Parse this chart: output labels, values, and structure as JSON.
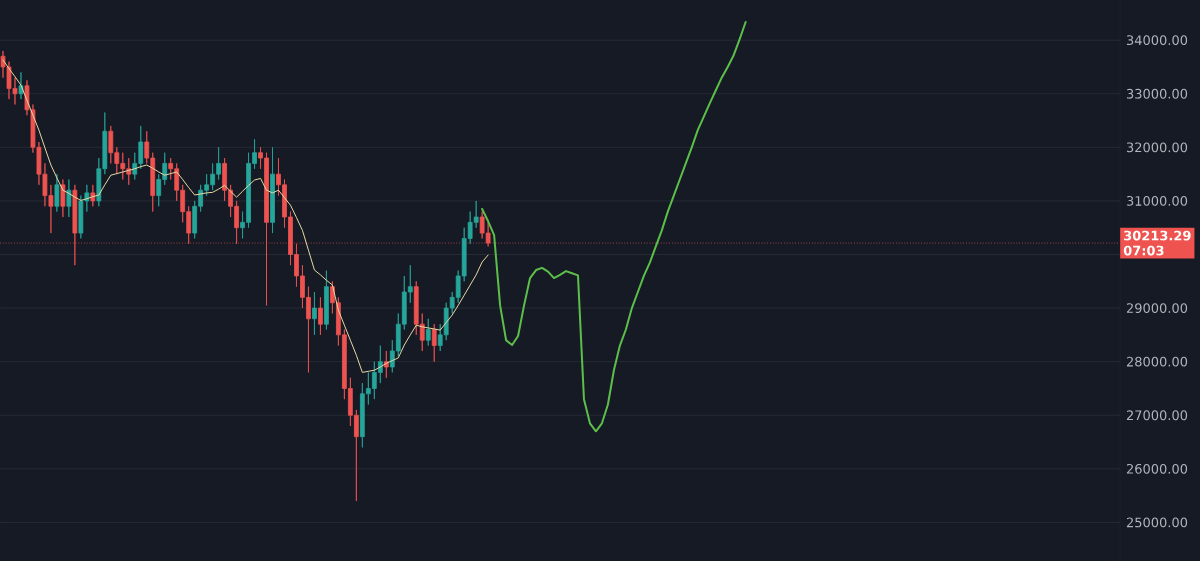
{
  "chart_data": {
    "type": "candlestick",
    "categories": [
      null,
      null,
      null,
      null,
      null,
      null,
      null,
      null,
      null,
      null,
      null,
      null,
      null,
      null,
      null,
      null,
      null,
      null,
      null,
      null,
      null,
      null,
      null,
      null,
      null,
      null,
      null,
      null,
      null,
      null,
      null,
      null,
      null,
      null,
      null,
      null,
      null,
      null,
      null,
      null,
      null,
      null,
      null,
      null,
      null,
      null,
      null,
      null,
      null,
      null,
      null,
      null,
      null,
      null,
      null,
      null,
      null,
      null,
      null,
      null,
      null,
      null,
      null,
      null,
      null,
      null,
      null,
      null,
      null,
      null,
      null,
      null,
      null,
      null,
      null,
      null,
      null,
      null,
      null,
      null,
      null,
      null,
      null,
      null,
      null,
      null,
      null,
      null,
      null,
      null,
      null,
      null,
      null,
      null,
      null,
      null,
      null,
      null,
      null,
      null,
      null,
      null,
      null,
      null,
      null,
      null,
      null,
      null,
      null,
      null,
      null,
      null,
      null,
      null,
      null,
      null,
      null,
      null,
      null,
      null,
      null,
      null,
      null,
      null,
      null,
      null,
      null,
      null,
      null,
      null,
      null,
      null,
      null,
      null,
      null,
      null,
      null,
      null,
      null,
      null,
      null,
      null,
      null,
      null,
      null,
      null,
      null,
      null,
      null,
      null,
      null,
      null,
      null,
      null,
      null,
      null,
      null,
      null,
      null,
      null,
      null,
      null,
      null,
      null,
      null,
      null,
      null,
      null,
      null,
      null,
      null,
      null,
      null,
      null,
      null,
      null,
      null,
      null,
      null,
      null,
      null,
      null,
      null,
      null,
      null,
      null,
      null
    ],
    "ohlc": [
      [
        33700,
        33800,
        33300,
        33500
      ],
      [
        33500,
        33600,
        32900,
        33100
      ],
      [
        33100,
        33300,
        32800,
        33000
      ],
      [
        33000,
        33400,
        32900,
        33150
      ],
      [
        33150,
        33250,
        32600,
        32700
      ],
      [
        32700,
        32800,
        31900,
        32000
      ],
      [
        32000,
        32100,
        31300,
        31500
      ],
      [
        31500,
        31700,
        30900,
        31100
      ],
      [
        31100,
        31300,
        30400,
        30900
      ],
      [
        30900,
        31500,
        30800,
        31300
      ],
      [
        31300,
        31400,
        30700,
        30900
      ],
      [
        30900,
        31400,
        30700,
        31200
      ],
      [
        31200,
        31300,
        29800,
        30400
      ],
      [
        30400,
        31100,
        30300,
        31000
      ],
      [
        31000,
        31300,
        30800,
        31150
      ],
      [
        31150,
        31300,
        30900,
        31000
      ],
      [
        31000,
        31800,
        30900,
        31600
      ],
      [
        31600,
        32650,
        31500,
        32300
      ],
      [
        32300,
        32400,
        31700,
        31900
      ],
      [
        31900,
        32000,
        31500,
        31700
      ],
      [
        31700,
        31900,
        31400,
        31600
      ],
      [
        31600,
        31800,
        31300,
        31500
      ],
      [
        31500,
        31900,
        31400,
        31700
      ],
      [
        31700,
        32400,
        31600,
        32100
      ],
      [
        32100,
        32300,
        31700,
        31800
      ],
      [
        31800,
        31900,
        30800,
        31100
      ],
      [
        31100,
        31500,
        30900,
        31400
      ],
      [
        31400,
        31900,
        31300,
        31700
      ],
      [
        31700,
        31800,
        31400,
        31600
      ],
      [
        31600,
        31700,
        31000,
        31200
      ],
      [
        31200,
        31300,
        30600,
        30800
      ],
      [
        30800,
        30900,
        30200,
        30400
      ],
      [
        30400,
        31000,
        30300,
        30900
      ],
      [
        30900,
        31300,
        30800,
        31200
      ],
      [
        31200,
        31500,
        31100,
        31300
      ],
      [
        31300,
        31700,
        31200,
        31500
      ],
      [
        31500,
        32000,
        31400,
        31700
      ],
      [
        31700,
        31800,
        31000,
        31200
      ],
      [
        31200,
        31300,
        30700,
        30900
      ],
      [
        30900,
        31000,
        30200,
        30500
      ],
      [
        30500,
        30800,
        30300,
        30600
      ],
      [
        30600,
        31900,
        30500,
        31700
      ],
      [
        31700,
        32150,
        31600,
        31900
      ],
      [
        31900,
        32000,
        31600,
        31800
      ],
      [
        31800,
        31900,
        29050,
        30600
      ],
      [
        30600,
        32000,
        30400,
        31500
      ],
      [
        31500,
        31800,
        31100,
        31300
      ],
      [
        31300,
        31400,
        30500,
        30700
      ],
      [
        30700,
        30800,
        29800,
        30000
      ],
      [
        30000,
        30200,
        29400,
        29600
      ],
      [
        29600,
        29800,
        29000,
        29200
      ],
      [
        29200,
        29400,
        27800,
        28800
      ],
      [
        28800,
        29300,
        28500,
        29000
      ],
      [
        29000,
        29200,
        28500,
        28700
      ],
      [
        28700,
        29700,
        28600,
        29400
      ],
      [
        29400,
        29500,
        28900,
        29100
      ],
      [
        29100,
        29200,
        28300,
        28500
      ],
      [
        28500,
        28600,
        27300,
        27500
      ],
      [
        27500,
        27700,
        26800,
        27000
      ],
      [
        27000,
        27100,
        25400,
        26600
      ],
      [
        26600,
        27600,
        26400,
        27400
      ],
      [
        27400,
        27800,
        27200,
        27500
      ],
      [
        27500,
        28000,
        27300,
        27800
      ],
      [
        27800,
        28300,
        27600,
        28000
      ],
      [
        28000,
        28200,
        27700,
        27900
      ],
      [
        27900,
        28400,
        27800,
        28200
      ],
      [
        28200,
        28900,
        28100,
        28700
      ],
      [
        28700,
        29600,
        28600,
        29300
      ],
      [
        29300,
        29800,
        29100,
        29400
      ],
      [
        29400,
        29500,
        28500,
        28700
      ],
      [
        28700,
        28900,
        28200,
        28400
      ],
      [
        28400,
        28800,
        28300,
        28600
      ],
      [
        28600,
        28700,
        28000,
        28300
      ],
      [
        28300,
        28700,
        28200,
        28500
      ],
      [
        28500,
        29100,
        28400,
        29000
      ],
      [
        29000,
        29300,
        28900,
        29200
      ],
      [
        29200,
        29700,
        29100,
        29600
      ],
      [
        29600,
        30500,
        29500,
        30300
      ],
      [
        30300,
        30800,
        30200,
        30600
      ],
      [
        30600,
        31000,
        30500,
        30700
      ],
      [
        30700,
        30800,
        30300,
        30400
      ],
      [
        30400,
        30600,
        30150,
        30213.29
      ],
      null,
      null,
      null,
      null,
      null,
      null,
      null,
      null,
      null,
      null,
      null,
      null,
      null,
      null,
      null,
      null,
      null,
      null,
      null,
      null,
      null,
      null,
      null,
      null,
      null,
      null,
      null,
      null,
      null,
      null,
      null,
      null,
      null,
      null,
      null,
      null,
      null,
      null,
      null,
      null,
      null,
      null,
      null,
      null,
      null,
      null,
      null,
      null,
      null,
      null,
      null,
      null,
      null,
      null,
      null,
      null,
      null,
      null,
      null,
      null,
      null,
      null,
      null,
      null,
      null,
      null,
      null,
      null,
      null,
      null,
      null,
      null,
      null,
      null,
      null,
      null,
      null,
      null,
      null,
      null,
      null,
      null,
      null,
      null,
      null,
      null,
      null,
      null,
      null,
      null,
      null,
      null,
      null,
      null,
      null,
      null,
      null,
      null,
      null,
      null,
      null,
      null,
      null,
      null,
      null
    ],
    "colors": [
      "#ef5350",
      "#ef5350",
      "#ef5350",
      "#26a69a",
      "#ef5350",
      "#ef5350",
      "#ef5350",
      "#ef5350",
      "#ef5350",
      "#26a69a",
      "#ef5350",
      "#26a69a",
      "#ef5350",
      "#26a69a",
      "#26a69a",
      "#ef5350",
      "#26a69a",
      "#26a69a",
      "#ef5350",
      "#ef5350",
      "#ef5350",
      "#ef5350",
      "#26a69a",
      "#26a69a",
      "#ef5350",
      "#ef5350",
      "#26a69a",
      "#26a69a",
      "#ef5350",
      "#ef5350",
      "#ef5350",
      "#ef5350",
      "#26a69a",
      "#26a69a",
      "#26a69a",
      "#26a69a",
      "#26a69a",
      "#ef5350",
      "#ef5350",
      "#ef5350",
      "#26a69a",
      "#26a69a",
      "#26a69a",
      "#ef5350",
      "#ef5350",
      "#26a69a",
      "#ef5350",
      "#ef5350",
      "#ef5350",
      "#ef5350",
      "#ef5350",
      "#ef5350",
      "#26a69a",
      "#ef5350",
      "#26a69a",
      "#ef5350",
      "#ef5350",
      "#ef5350",
      "#ef5350",
      "#ef5350",
      "#26a69a",
      "#26a69a",
      "#26a69a",
      "#26a69a",
      "#ef5350",
      "#26a69a",
      "#26a69a",
      "#26a69a",
      "#26a69a",
      "#ef5350",
      "#ef5350",
      "#26a69a",
      "#ef5350",
      "#26a69a",
      "#26a69a",
      "#26a69a",
      "#26a69a",
      "#26a69a",
      "#26a69a",
      "#26a69a",
      "#ef5350",
      "#ef5350",
      null,
      null,
      null,
      null,
      null,
      null,
      null,
      null,
      null,
      null,
      null,
      null,
      null,
      null,
      null,
      null,
      null,
      null,
      null,
      null,
      null,
      null,
      null,
      null,
      null,
      null,
      null,
      null,
      null,
      null,
      null,
      null,
      null,
      null,
      null,
      null,
      null,
      null,
      null,
      null,
      null,
      null,
      null,
      null,
      null,
      null,
      null,
      null,
      null,
      null,
      null,
      null,
      null,
      null,
      null,
      null,
      null,
      null,
      null,
      null,
      null,
      null,
      null,
      null,
      null,
      null,
      null,
      null,
      null,
      null,
      null,
      null,
      null,
      null,
      null,
      null,
      null,
      null,
      null,
      null,
      null,
      null,
      null,
      null,
      null,
      null,
      null,
      null,
      null,
      null,
      null,
      null,
      null,
      null,
      null,
      null,
      null,
      null,
      null,
      null,
      null,
      null,
      null,
      null,
      null
    ],
    "series": [
      {
        "type": "line",
        "color": "#e6d9a2",
        "values": [
          33630,
          33470,
          33320,
          33160,
          32880,
          32600,
          32320,
          31990,
          31670,
          31430,
          31200,
          31140,
          31070,
          31010,
          31040,
          31080,
          31110,
          31300,
          31480,
          31510,
          31540,
          31570,
          31600,
          31640,
          31670,
          31610,
          31540,
          31480,
          31510,
          31540,
          31400,
          31250,
          31110,
          31130,
          31150,
          31160,
          31220,
          31290,
          31180,
          31070,
          31180,
          31290,
          31390,
          31420,
          31200,
          31150,
          31200,
          31060,
          30920,
          30690,
          30450,
          30080,
          29710,
          29620,
          29520,
          29430,
          28960,
          28680,
          28400,
          28120,
          27800,
          27820,
          27840,
          27900,
          27970,
          28020,
          28070,
          28310,
          28500,
          28680,
          28650,
          28630,
          28610,
          28590,
          28730,
          28870,
          29050,
          29240,
          29430,
          29620,
          29860,
          29990,
          null,
          null,
          null,
          null,
          null,
          null,
          null,
          null,
          null,
          null,
          null,
          null,
          null,
          null,
          null,
          null,
          null,
          null,
          null,
          null,
          null,
          null,
          null,
          null,
          null,
          null,
          null,
          null,
          null,
          null,
          null,
          null,
          null,
          null,
          null,
          null,
          null,
          null,
          null,
          null,
          null,
          null,
          null,
          null,
          null,
          null,
          null,
          null,
          null,
          null,
          null,
          null,
          null,
          null,
          null,
          null,
          null,
          null,
          null,
          null,
          null,
          null,
          null,
          null,
          null,
          null,
          null,
          null,
          null,
          null,
          null,
          null,
          null,
          null,
          null,
          null,
          null,
          null,
          null,
          null,
          null,
          null,
          null,
          null,
          null,
          null,
          null,
          null,
          null,
          null,
          null,
          null,
          null,
          null,
          null,
          null,
          null,
          null,
          null,
          null,
          null,
          null,
          null,
          null,
          null
        ]
      },
      {
        "type": "line",
        "color": "#5cbf4a",
        "values": [
          null,
          null,
          null,
          null,
          null,
          null,
          null,
          null,
          null,
          null,
          null,
          null,
          null,
          null,
          null,
          null,
          null,
          null,
          null,
          null,
          null,
          null,
          null,
          null,
          null,
          null,
          null,
          null,
          null,
          null,
          null,
          null,
          null,
          null,
          null,
          null,
          null,
          null,
          null,
          null,
          null,
          null,
          null,
          null,
          null,
          null,
          null,
          null,
          null,
          null,
          null,
          null,
          null,
          null,
          null,
          null,
          null,
          null,
          null,
          null,
          null,
          null,
          null,
          null,
          null,
          null,
          null,
          null,
          null,
          null,
          null,
          null,
          null,
          null,
          null,
          null,
          null,
          null,
          null,
          null,
          30850,
          30620,
          30360,
          29050,
          28400,
          28310,
          28480,
          29050,
          29560,
          29710,
          29750,
          29680,
          29560,
          29620,
          29690,
          29650,
          29610,
          27300,
          26850,
          26700,
          26850,
          27200,
          27840,
          28300,
          28600,
          29000,
          29300,
          29600,
          29850,
          30150,
          30450,
          30800,
          31100,
          31400,
          31700,
          32000,
          32320,
          32570,
          32820,
          33060,
          33300,
          33500,
          33720,
          34020,
          34340,
          null,
          null,
          null,
          null,
          null,
          null,
          null,
          null,
          null,
          null,
          null,
          null,
          null,
          null,
          null,
          null,
          null,
          null,
          null,
          null,
          null,
          null,
          null,
          null,
          null,
          null,
          null,
          null,
          null,
          null,
          null,
          null,
          null,
          null,
          null,
          null,
          null,
          null,
          null,
          null,
          null,
          null,
          null,
          null,
          null,
          null,
          null,
          null,
          null,
          null,
          null,
          null,
          null,
          null,
          null,
          null,
          null,
          null,
          null,
          null,
          null,
          null
        ]
      }
    ],
    "ylim": [
      24280,
      34750
    ],
    "yticks": [
      {
        "value": 25000,
        "label": "25000.00"
      },
      {
        "value": 26000,
        "label": "26000.00"
      },
      {
        "value": 27000,
        "label": "27000.00"
      },
      {
        "value": 28000,
        "label": "28000.00"
      },
      {
        "value": 29000,
        "label": "29000.00"
      },
      {
        "value": 30000,
        "label": null
      },
      {
        "value": 31000,
        "label": "31000.00"
      },
      {
        "value": 32000,
        "label": "32000.00"
      },
      {
        "value": 33000,
        "label": "33000.00"
      },
      {
        "value": 34000,
        "label": "34000.00"
      }
    ],
    "tick_labels": "y",
    "grid": "y",
    "ref_lines": [
      {
        "axis": "y",
        "value": 30213.29,
        "label": "30213.29",
        "color": "#ef5350",
        "line_style": "dotted"
      }
    ],
    "annotations": [
      "07:03"
    ]
  }
}
